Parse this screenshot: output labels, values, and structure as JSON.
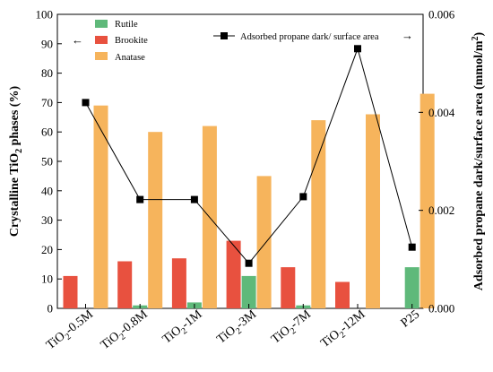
{
  "chart_data": {
    "type": "bar",
    "categories": [
      {
        "base": "TiO",
        "sub": "2",
        "suffix": "-0.5M"
      },
      {
        "base": "TiO",
        "sub": "2",
        "suffix": "-0.8M"
      },
      {
        "base": "TiO",
        "sub": "2",
        "suffix": "-1M"
      },
      {
        "base": "TiO",
        "sub": "2",
        "suffix": "-3M"
      },
      {
        "base": "TiO",
        "sub": "2",
        "suffix": "-7M"
      },
      {
        "base": "TiO",
        "sub": "2",
        "suffix": "-12M"
      },
      {
        "base": "P25",
        "sub": "",
        "suffix": ""
      }
    ],
    "series": [
      {
        "name": "Rutile",
        "color": "#5fb97a",
        "values": [
          0,
          1,
          2,
          11,
          1,
          0,
          14
        ]
      },
      {
        "name": "Brookite",
        "color": "#e8513f",
        "values": [
          11,
          16,
          17,
          23,
          14,
          9,
          0
        ]
      },
      {
        "name": "Anatase",
        "color": "#f6b45c",
        "values": [
          69,
          60,
          62,
          45,
          64,
          66,
          73
        ]
      }
    ],
    "line": {
      "name": "Adsorbed propane dark/ surface area",
      "color": "#000000",
      "values": [
        0.0042,
        0.00222,
        0.00222,
        0.00092,
        0.00228,
        0.0053,
        0.00125
      ]
    },
    "y_left": {
      "label_pre": "Crystalline TiO",
      "label_sub": "2",
      "label_post": " phases (%)",
      "lim": [
        0,
        100
      ],
      "ticks": [
        "0",
        "10",
        "20",
        "30",
        "40",
        "50",
        "60",
        "70",
        "80",
        "90",
        "100"
      ]
    },
    "y_right": {
      "label_pre": "Adsorbed propane dark/surface area (mmol/m",
      "label_sup": "2",
      "label_post": ")",
      "lim": [
        0,
        0.006
      ],
      "ticks": [
        "0.000",
        "0.002",
        "0.004",
        "0.006"
      ]
    },
    "legend": {
      "placement": "top-left",
      "arrow_left": "←",
      "arrow_right": "→"
    }
  }
}
